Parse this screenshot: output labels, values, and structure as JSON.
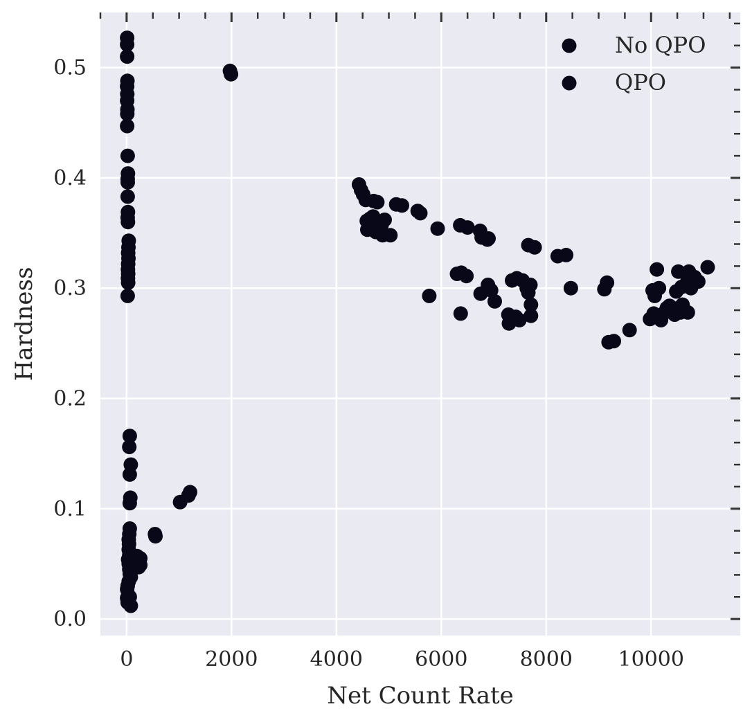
{
  "chart_data": {
    "type": "scatter",
    "title": "",
    "xlabel": "Net Count Rate",
    "ylabel": "Hardness",
    "xlim": [
      -500,
      11700
    ],
    "ylim": [
      -0.015,
      0.55
    ],
    "xticks": [
      0,
      2000,
      4000,
      6000,
      8000,
      10000
    ],
    "xtick_labels": [
      "0",
      "2000",
      "4000",
      "6000",
      "8000",
      "10000"
    ],
    "yticks": [
      0.0,
      0.1,
      0.2,
      0.3,
      0.4,
      0.5
    ],
    "ytick_labels": [
      "0.0",
      "0.1",
      "0.2",
      "0.3",
      "0.4",
      "0.5"
    ],
    "grid": true,
    "background": "#eaeaf2",
    "grid_color": "#ffffff",
    "marker_color": "#080818",
    "legend": {
      "position": "top-right",
      "entries": [
        "No QPO",
        "QPO"
      ]
    },
    "series": [
      {
        "name": "No QPO",
        "points": [
          [
            10,
            0.527
          ],
          [
            10,
            0.521
          ],
          [
            10,
            0.51
          ],
          [
            15,
            0.488
          ],
          [
            10,
            0.483
          ],
          [
            12,
            0.476
          ],
          [
            10,
            0.47
          ],
          [
            15,
            0.462
          ],
          [
            12,
            0.458
          ],
          [
            10,
            0.447
          ],
          [
            20,
            0.42
          ],
          [
            25,
            0.404
          ],
          [
            20,
            0.399
          ],
          [
            22,
            0.396
          ],
          [
            20,
            0.383
          ],
          [
            25,
            0.369
          ],
          [
            20,
            0.364
          ],
          [
            25,
            0.36
          ],
          [
            40,
            0.343
          ],
          [
            35,
            0.337
          ],
          [
            30,
            0.332
          ],
          [
            35,
            0.327
          ],
          [
            30,
            0.322
          ],
          [
            25,
            0.317
          ],
          [
            30,
            0.313
          ],
          [
            25,
            0.309
          ],
          [
            30,
            0.305
          ],
          [
            20,
            0.293
          ],
          [
            1970,
            0.497
          ],
          [
            1990,
            0.494
          ],
          [
            60,
            0.166
          ],
          [
            50,
            0.156
          ],
          [
            80,
            0.14
          ],
          [
            60,
            0.131
          ],
          [
            70,
            0.11
          ],
          [
            60,
            0.105
          ],
          [
            60,
            0.082
          ],
          [
            50,
            0.077
          ],
          [
            40,
            0.072
          ],
          [
            45,
            0.068
          ],
          [
            40,
            0.063
          ],
          [
            50,
            0.058
          ],
          [
            30,
            0.054
          ],
          [
            40,
            0.05
          ],
          [
            50,
            0.045
          ],
          [
            60,
            0.041
          ],
          [
            80,
            0.038
          ],
          [
            40,
            0.034
          ],
          [
            20,
            0.03
          ],
          [
            10,
            0.027
          ],
          [
            30,
            0.022
          ],
          [
            10,
            0.019
          ],
          [
            20,
            0.015
          ],
          [
            80,
            0.012
          ],
          [
            60,
            0.02
          ],
          [
            200,
            0.057
          ],
          [
            260,
            0.055
          ],
          [
            220,
            0.052
          ],
          [
            260,
            0.049
          ],
          [
            230,
            0.047
          ],
          [
            160,
            0.05
          ],
          [
            130,
            0.053
          ],
          [
            540,
            0.077
          ],
          [
            550,
            0.075
          ],
          [
            1020,
            0.106
          ],
          [
            1180,
            0.112
          ],
          [
            1210,
            0.115
          ]
        ]
      },
      {
        "name": "QPO",
        "points": [
          [
            4430,
            0.394
          ],
          [
            4470,
            0.389
          ],
          [
            4510,
            0.385
          ],
          [
            4560,
            0.38
          ],
          [
            4710,
            0.379
          ],
          [
            4780,
            0.378
          ],
          [
            4920,
            0.362
          ],
          [
            4860,
            0.357
          ],
          [
            4580,
            0.361
          ],
          [
            4680,
            0.355
          ],
          [
            4590,
            0.353
          ],
          [
            4750,
            0.351
          ],
          [
            4880,
            0.348
          ],
          [
            5030,
            0.348
          ],
          [
            4700,
            0.365
          ],
          [
            4640,
            0.363
          ],
          [
            5140,
            0.376
          ],
          [
            5250,
            0.375
          ],
          [
            5550,
            0.37
          ],
          [
            5600,
            0.368
          ],
          [
            5930,
            0.354
          ],
          [
            6360,
            0.357
          ],
          [
            6500,
            0.355
          ],
          [
            6740,
            0.352
          ],
          [
            6770,
            0.346
          ],
          [
            6880,
            0.344
          ],
          [
            6900,
            0.345
          ],
          [
            6300,
            0.313
          ],
          [
            6380,
            0.314
          ],
          [
            6480,
            0.311
          ],
          [
            5770,
            0.293
          ],
          [
            6370,
            0.277
          ],
          [
            6750,
            0.295
          ],
          [
            6890,
            0.303
          ],
          [
            6950,
            0.298
          ],
          [
            7020,
            0.288
          ],
          [
            7280,
            0.276
          ],
          [
            7290,
            0.268
          ],
          [
            7420,
            0.274
          ],
          [
            7490,
            0.271
          ],
          [
            7350,
            0.307
          ],
          [
            7440,
            0.309
          ],
          [
            7550,
            0.307
          ],
          [
            7630,
            0.3
          ],
          [
            7700,
            0.303
          ],
          [
            7660,
            0.296
          ],
          [
            7710,
            0.285
          ],
          [
            7710,
            0.275
          ],
          [
            7660,
            0.339
          ],
          [
            7780,
            0.337
          ],
          [
            8220,
            0.329
          ],
          [
            8380,
            0.33
          ],
          [
            8470,
            0.3
          ],
          [
            9110,
            0.299
          ],
          [
            9160,
            0.305
          ],
          [
            9190,
            0.251
          ],
          [
            9290,
            0.252
          ],
          [
            9590,
            0.262
          ],
          [
            9980,
            0.272
          ],
          [
            10050,
            0.277
          ],
          [
            10030,
            0.298
          ],
          [
            10070,
            0.293
          ],
          [
            10150,
            0.3
          ],
          [
            10110,
            0.317
          ],
          [
            10190,
            0.271
          ],
          [
            10260,
            0.278
          ],
          [
            10300,
            0.282
          ],
          [
            10350,
            0.284
          ],
          [
            10420,
            0.279
          ],
          [
            10450,
            0.276
          ],
          [
            10520,
            0.282
          ],
          [
            10560,
            0.278
          ],
          [
            10600,
            0.285
          ],
          [
            10650,
            0.279
          ],
          [
            10700,
            0.278
          ],
          [
            10480,
            0.297
          ],
          [
            10520,
            0.315
          ],
          [
            10580,
            0.301
          ],
          [
            10650,
            0.303
          ],
          [
            10700,
            0.308
          ],
          [
            10720,
            0.315
          ],
          [
            10760,
            0.3
          ],
          [
            10830,
            0.31
          ],
          [
            10900,
            0.306
          ],
          [
            11080,
            0.319
          ]
        ]
      }
    ]
  }
}
